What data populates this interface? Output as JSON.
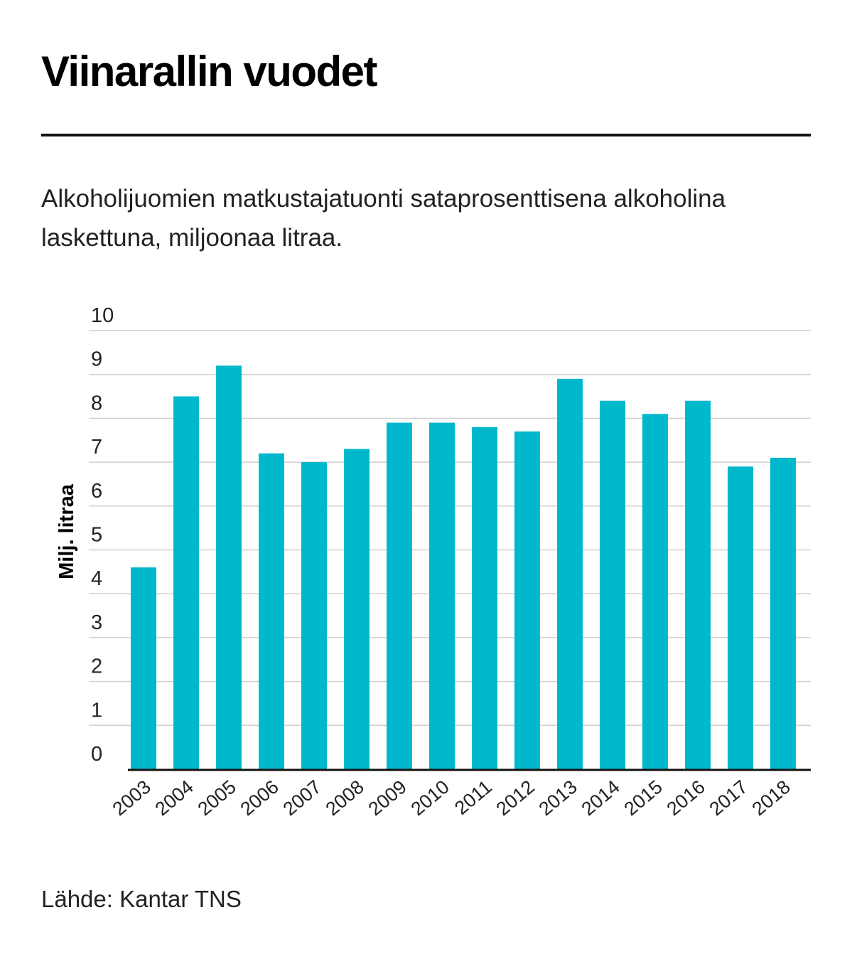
{
  "header": {
    "title": "Viinarallin vuodet",
    "subtitle": "Alkoholijuomien matkustajatuonti sataprosenttisena alkoholina laskettuna, miljoonaa litraa."
  },
  "footer": {
    "source": "Lähde: Kantar TNS"
  },
  "colors": {
    "bar": "#00b8cc",
    "grid": "#d0d0d0",
    "axis": "#111111"
  },
  "chart_data": {
    "type": "bar",
    "categories": [
      "2003",
      "2004",
      "2005",
      "2006",
      "2007",
      "2008",
      "2009",
      "2010",
      "2011",
      "2012",
      "2013",
      "2014",
      "2015",
      "2016",
      "2017",
      "2018"
    ],
    "values": [
      4.6,
      8.5,
      9.2,
      7.2,
      7.0,
      7.3,
      7.9,
      7.9,
      7.8,
      7.7,
      8.9,
      8.4,
      8.1,
      8.4,
      6.9,
      7.1
    ],
    "ylabel": "Milj. litraa",
    "xlabel": "",
    "ylim": [
      0,
      10
    ],
    "yticks": [
      0,
      1,
      2,
      3,
      4,
      5,
      6,
      7,
      8,
      9,
      10
    ],
    "grid": true,
    "legend": "none"
  }
}
